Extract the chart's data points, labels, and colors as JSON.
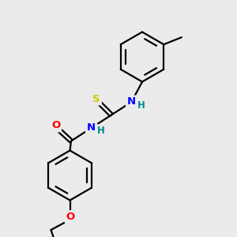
{
  "background_color": "#ebebeb",
  "bond_color": "#000000",
  "atom_colors": {
    "N": "#0000ff",
    "O": "#ff0000",
    "S": "#cccc00",
    "H_N": "#008b8b",
    "C": "#000000"
  },
  "figsize": [
    3.0,
    3.0
  ],
  "dpi": 100
}
